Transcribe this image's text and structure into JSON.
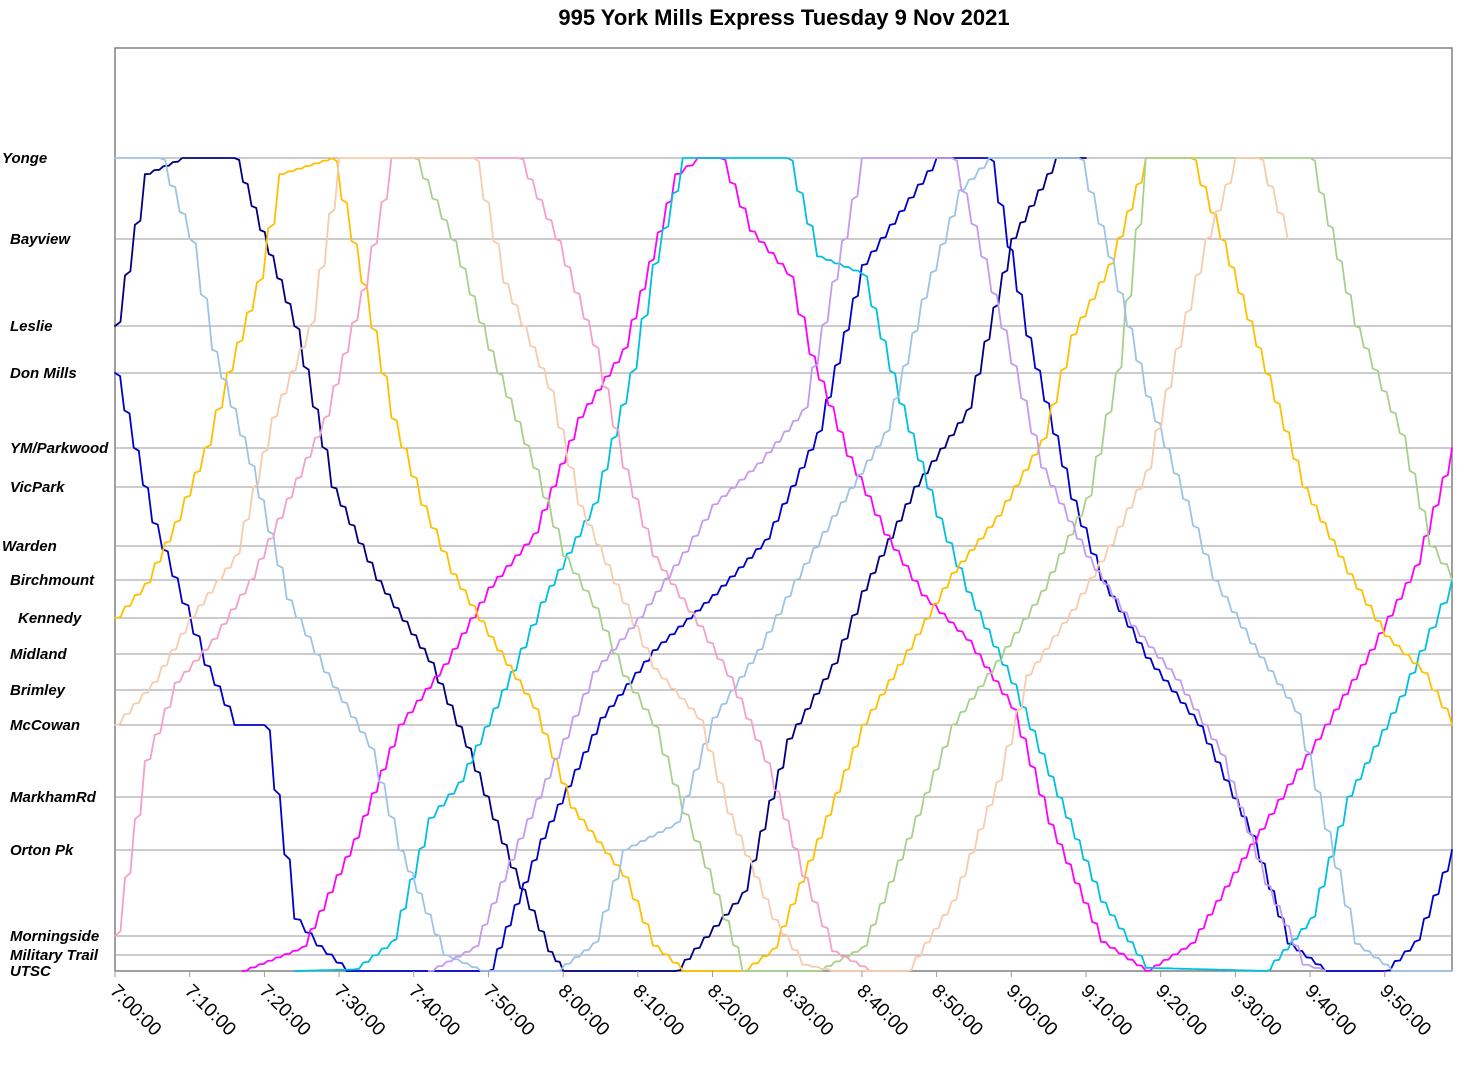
{
  "chart_data": {
    "type": "line",
    "title": "995 York Mills Express Tuesday 9 Nov 2021",
    "xlabel": "",
    "ylabel": "",
    "x_range": [
      "7:00:00",
      "9:59:00"
    ],
    "x_ticks": [
      "7:00:00",
      "7:10:00",
      "7:20:00",
      "7:30:00",
      "7:40:00",
      "7:50:00",
      "8:00:00",
      "8:10:00",
      "8:20:00",
      "8:30:00",
      "8:40:00",
      "8:50:00",
      "9:00:00",
      "9:10:00",
      "9:20:00",
      "9:30:00",
      "9:40:00",
      "9:50:00"
    ],
    "grid": true,
    "legend": "none",
    "stops": [
      "Yonge",
      "Bayview",
      "Leslie",
      "Don Mills",
      "YM/Parkwood",
      "VicPark",
      "Warden",
      "Birchmount",
      "Kennedy",
      "Midland",
      "Brimley",
      "McCowan",
      "MarkhamRd",
      "Orton Pk",
      "Morningside",
      "Military Trail",
      "UTSC"
    ],
    "series": [
      {
        "color": "#000080",
        "points": [
          [
            "7:00",
            2
          ],
          [
            "7:04",
            0.2
          ],
          [
            "7:09",
            0
          ],
          [
            "7:16",
            0
          ],
          [
            "7:24",
            2
          ],
          [
            "7:29",
            5
          ],
          [
            "7:35",
            7
          ],
          [
            "7:42",
            9.2
          ],
          [
            "7:47",
            11.3
          ],
          [
            "7:53",
            13.2
          ],
          [
            "7:58",
            14.8
          ],
          [
            "8:00",
            16
          ],
          [
            "8:15",
            16
          ]
        ]
      },
      {
        "color": "#000080",
        "points": [
          [
            "8:15",
            16
          ],
          [
            "8:24",
            13.5
          ],
          [
            "8:30",
            11.2
          ],
          [
            "8:36",
            9.3
          ],
          [
            "8:40",
            7.3
          ],
          [
            "8:47",
            5
          ],
          [
            "8:54",
            3.5
          ],
          [
            "9:00",
            1
          ],
          [
            "9:06",
            0
          ],
          [
            "9:10",
            0
          ]
        ]
      },
      {
        "color": "#0000CC",
        "points": [
          [
            "7:00",
            3
          ],
          [
            "7:05",
            5.6
          ],
          [
            "7:09",
            7.6
          ],
          [
            "7:12",
            9.3
          ],
          [
            "7:16",
            11
          ],
          [
            "7:20",
            11
          ],
          [
            "7:24",
            13.8
          ],
          [
            "7:27",
            14.5
          ],
          [
            "7:31",
            16
          ],
          [
            "7:50",
            16
          ]
        ]
      },
      {
        "color": "#0000CC",
        "points": [
          [
            "7:50",
            16
          ],
          [
            "7:57",
            12.8
          ],
          [
            "8:05",
            10.8
          ],
          [
            "8:12",
            8.9
          ],
          [
            "8:20",
            7.4
          ],
          [
            "8:27",
            5.9
          ],
          [
            "8:34",
            3.8
          ],
          [
            "8:40",
            1.3
          ],
          [
            "8:50",
            0
          ],
          [
            "8:57",
            0
          ],
          [
            "9:02",
            2.2
          ],
          [
            "9:08",
            5.2
          ],
          [
            "9:12",
            7
          ],
          [
            "9:18",
            9.1
          ],
          [
            "9:25",
            11
          ],
          [
            "9:32",
            12.7
          ],
          [
            "9:37",
            14.4
          ],
          [
            "9:42",
            16
          ],
          [
            "9:50",
            16
          ],
          [
            "9:54",
            14.3
          ],
          [
            "9:59",
            13
          ]
        ]
      },
      {
        "color": "#FF00FF",
        "points": [
          [
            "7:17",
            16
          ],
          [
            "7:25",
            14.6
          ],
          [
            "7:32",
            12.8
          ],
          [
            "7:38",
            11
          ],
          [
            "7:44",
            9.3
          ],
          [
            "7:50",
            7.2
          ],
          [
            "7:56",
            5.8
          ],
          [
            "8:02",
            3.6
          ],
          [
            "8:08",
            2.5
          ],
          [
            "8:15",
            0.2
          ],
          [
            "8:18",
            0
          ],
          [
            "8:21",
            0
          ],
          [
            "8:25",
            0.9
          ],
          [
            "8:30",
            1.4
          ],
          [
            "8:33",
            2.6
          ],
          [
            "8:38",
            4.2
          ],
          [
            "8:43",
            5.8
          ],
          [
            "8:48",
            7.4
          ],
          [
            "8:54",
            8.6
          ],
          [
            "9:00",
            10.5
          ],
          [
            "9:05",
            12.5
          ],
          [
            "9:12",
            14.3
          ],
          [
            "9:18",
            16
          ],
          [
            "9:24",
            14.4
          ],
          [
            "9:32",
            12.9
          ],
          [
            "9:42",
            11
          ],
          [
            "9:48",
            8.9
          ],
          [
            "9:54",
            6.6
          ],
          [
            "9:59",
            4
          ]
        ]
      },
      {
        "color": "#00C0E0",
        "points": [
          [
            "7:24",
            16
          ],
          [
            "7:32",
            15.9
          ],
          [
            "7:37",
            14.3
          ],
          [
            "7:42",
            12.4
          ],
          [
            "7:46",
            11.8
          ],
          [
            "7:53",
            9.5
          ],
          [
            "7:57",
            7.6
          ],
          [
            "8:04",
            5.3
          ],
          [
            "8:09",
            3
          ],
          [
            "8:12",
            1.3
          ],
          [
            "8:16",
            0
          ],
          [
            "8:30",
            0
          ],
          [
            "8:34",
            1.2
          ],
          [
            "8:40",
            1.4
          ],
          [
            "8:45",
            3.4
          ],
          [
            "8:50",
            5.5
          ],
          [
            "8:54",
            7.3
          ],
          [
            "9:00",
            9.8
          ],
          [
            "9:05",
            11.7
          ],
          [
            "9:12",
            13.6
          ],
          [
            "9:18",
            15.8
          ],
          [
            "9:34",
            16
          ],
          [
            "9:40",
            13.8
          ],
          [
            "9:45",
            12
          ],
          [
            "9:52",
            10.2
          ],
          [
            "9:56",
            8.3
          ],
          [
            "9:59",
            7
          ]
        ]
      },
      {
        "color": "#FFC000",
        "points": [
          [
            "7:00",
            8
          ],
          [
            "7:04",
            7.1
          ],
          [
            "7:08",
            5.6
          ],
          [
            "7:12",
            4
          ],
          [
            "7:15",
            3
          ],
          [
            "7:19",
            1.5
          ],
          [
            "7:22",
            0.2
          ],
          [
            "7:29",
            0
          ],
          [
            "7:33",
            1.5
          ],
          [
            "7:37",
            3.6
          ],
          [
            "7:41",
            5.3
          ],
          [
            "7:45",
            6.8
          ],
          [
            "7:50",
            8.5
          ],
          [
            "7:56",
            10.5
          ],
          [
            "8:01",
            12.2
          ],
          [
            "8:08",
            13.3
          ],
          [
            "8:12",
            14.5
          ],
          [
            "8:16",
            16
          ],
          [
            "8:24",
            16
          ],
          [
            "8:28",
            14.7
          ],
          [
            "8:34",
            12.8
          ],
          [
            "8:40",
            11
          ],
          [
            "8:46",
            8.9
          ],
          [
            "8:52",
            6.8
          ],
          [
            "8:58",
            5.5
          ],
          [
            "9:04",
            3.9
          ],
          [
            "9:08",
            2.2
          ],
          [
            "9:13",
            1.3
          ],
          [
            "9:18",
            0
          ],
          [
            "9:24",
            0
          ],
          [
            "9:28",
            1
          ],
          [
            "9:34",
            3
          ],
          [
            "9:39",
            5
          ],
          [
            "9:45",
            6.8
          ],
          [
            "9:50",
            8.5
          ],
          [
            "9:55",
            9.5
          ],
          [
            "9:59",
            11
          ]
        ]
      },
      {
        "color": "#A8D08D",
        "points": [
          [
            "7:40",
            0
          ],
          [
            "7:45",
            1
          ],
          [
            "7:50",
            2.5
          ],
          [
            "7:56",
            4.5
          ],
          [
            "8:00",
            6.3
          ],
          [
            "8:04",
            7.7
          ],
          [
            "8:08",
            9.6
          ],
          [
            "8:12",
            11
          ],
          [
            "8:16",
            12.3
          ],
          [
            "8:19",
            13.2
          ],
          [
            "8:24",
            16
          ],
          [
            "8:34",
            16
          ],
          [
            "8:40",
            14.6
          ],
          [
            "8:46",
            12.8
          ],
          [
            "8:52",
            11
          ],
          [
            "8:58",
            9.2
          ],
          [
            "9:04",
            7.3
          ],
          [
            "9:10",
            5.2
          ],
          [
            "9:14",
            3
          ],
          [
            "9:18",
            0
          ],
          [
            "9:40",
            0
          ],
          [
            "9:46",
            2
          ],
          [
            "9:52",
            3.8
          ],
          [
            "9:56",
            6
          ],
          [
            "9:59",
            7
          ]
        ]
      },
      {
        "color": "#9DC3E6",
        "points": [
          [
            "7:00",
            0
          ],
          [
            "7:06",
            0
          ],
          [
            "7:10",
            1
          ],
          [
            "7:13",
            2.5
          ],
          [
            "7:18",
            4.4
          ],
          [
            "7:23",
            7.5
          ],
          [
            "7:28",
            9.5
          ],
          [
            "7:34",
            11.3
          ],
          [
            "7:38",
            13
          ],
          [
            "7:44",
            15
          ],
          [
            "7:49",
            16
          ],
          [
            "7:59",
            16
          ],
          [
            "8:04",
            14.4
          ],
          [
            "8:08",
            13
          ],
          [
            "8:15",
            12.5
          ],
          [
            "8:20",
            10.8
          ],
          [
            "8:26",
            8.9
          ],
          [
            "8:31",
            7
          ],
          [
            "8:36",
            5.5
          ],
          [
            "8:43",
            3.8
          ],
          [
            "8:48",
            1.7
          ],
          [
            "8:53",
            0.4
          ],
          [
            "8:57",
            0
          ],
          [
            "9:09",
            0
          ],
          [
            "9:13",
            1.2
          ],
          [
            "9:18",
            3.3
          ],
          [
            "9:23",
            5.2
          ],
          [
            "9:27",
            7
          ],
          [
            "9:32",
            8.7
          ],
          [
            "9:38",
            10.6
          ],
          [
            "9:42",
            12.6
          ],
          [
            "9:46",
            14.4
          ],
          [
            "9:51",
            16
          ],
          [
            "9:59",
            16
          ]
        ]
      },
      {
        "color": "#F4A0C8",
        "points": [
          [
            "7:00",
            14
          ],
          [
            "7:04",
            11.5
          ],
          [
            "7:08",
            9.8
          ],
          [
            "7:13",
            8.6
          ],
          [
            "7:18",
            7
          ],
          [
            "7:23",
            5.2
          ],
          [
            "7:28",
            3.6
          ],
          [
            "7:33",
            1.6
          ],
          [
            "7:37",
            0
          ],
          [
            "7:47",
            0
          ],
          [
            "7:54",
            0
          ],
          [
            "7:59",
            1
          ],
          [
            "8:04",
            2.4
          ],
          [
            "8:08",
            4.5
          ],
          [
            "8:12",
            6.3
          ],
          [
            "8:18",
            8.2
          ],
          [
            "8:22",
            9.6
          ],
          [
            "8:27",
            11.5
          ],
          [
            "8:32",
            13.3
          ],
          [
            "8:36",
            14.8
          ],
          [
            "8:41",
            16
          ]
        ]
      },
      {
        "color": "#F8CBAD",
        "points": [
          [
            "7:00",
            11
          ],
          [
            "7:05",
            9.8
          ],
          [
            "7:10",
            8
          ],
          [
            "7:16",
            6.3
          ],
          [
            "7:21",
            3.6
          ],
          [
            "7:26",
            2
          ],
          [
            "7:30",
            0
          ],
          [
            "7:48",
            0
          ],
          [
            "7:52",
            1.5
          ],
          [
            "7:58",
            3.2
          ],
          [
            "8:02",
            5.3
          ],
          [
            "8:08",
            7.6
          ],
          [
            "8:12",
            9.4
          ],
          [
            "8:18",
            10.8
          ],
          [
            "8:22",
            12.3
          ],
          [
            "8:28",
            13.8
          ],
          [
            "8:32",
            15.6
          ],
          [
            "8:36",
            16
          ],
          [
            "8:46",
            16
          ],
          [
            "8:52",
            13.6
          ],
          [
            "8:58",
            11.8
          ],
          [
            "9:02",
            9.6
          ],
          [
            "9:08",
            7.8
          ],
          [
            "9:13",
            6
          ],
          [
            "9:18",
            4.6
          ],
          [
            "9:22",
            2.5
          ],
          [
            "9:26",
            1
          ],
          [
            "9:30",
            0
          ],
          [
            "9:33",
            0
          ],
          [
            "9:37",
            1
          ]
        ]
      },
      {
        "color": "#C39BF0",
        "points": [
          [
            "7:42",
            16
          ],
          [
            "7:48",
            14.6
          ],
          [
            "7:54",
            12.8
          ],
          [
            "8:00",
            11.2
          ],
          [
            "8:04",
            9.5
          ],
          [
            "8:10",
            8
          ],
          [
            "8:16",
            6.2
          ],
          [
            "8:20",
            5.3
          ],
          [
            "8:26",
            4.4
          ],
          [
            "8:32",
            3.5
          ],
          [
            "8:36",
            1.5
          ],
          [
            "8:40",
            0
          ],
          [
            "8:52",
            0
          ],
          [
            "8:56",
            1.2
          ],
          [
            "9:00",
            2.8
          ],
          [
            "9:04",
            4.5
          ],
          [
            "9:10",
            6.3
          ],
          [
            "9:16",
            8.2
          ],
          [
            "9:22",
            9.7
          ],
          [
            "9:28",
            11.4
          ],
          [
            "9:34",
            13.4
          ],
          [
            "9:39",
            15.6
          ],
          [
            "9:42",
            16
          ]
        ]
      }
    ]
  }
}
